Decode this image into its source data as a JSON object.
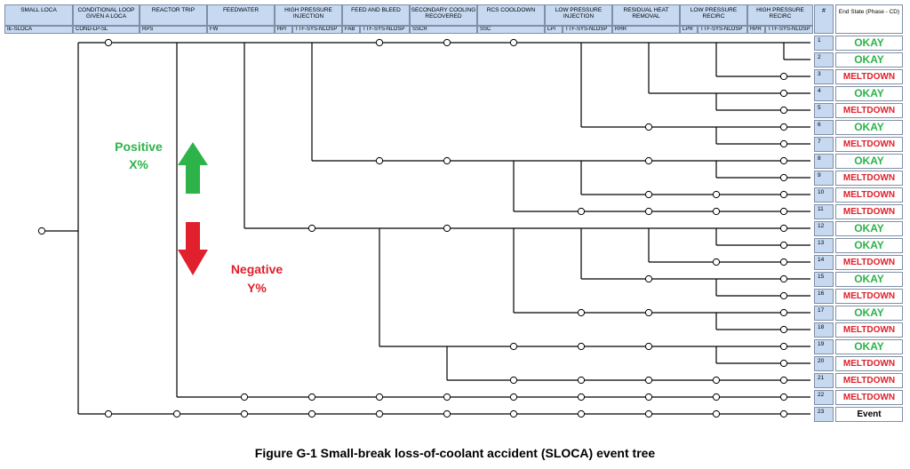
{
  "columns": [
    {
      "title": "SMALL LOCA",
      "code": "IE-SLOCA",
      "code2": ""
    },
    {
      "title": "CONDITIONAL LOOP GIVEN A LOCA",
      "code": "COND-LP-SL",
      "code2": ""
    },
    {
      "title": "REACTOR TRIP",
      "code": "RPS",
      "code2": ""
    },
    {
      "title": "FEEDWATER",
      "code": "FW",
      "code2": ""
    },
    {
      "title": "HIGH PRESSURE INJECTION",
      "code": "HPI",
      "code2": "TTF-SYS-NLOSP"
    },
    {
      "title": "FEED AND BLEED",
      "code": "FAB",
      "code2": "TTF-SYS-NLOSP"
    },
    {
      "title": "SECONDARY COOLING RECOVERED",
      "code": "SSCR",
      "code2": ""
    },
    {
      "title": "RCS COOLDOWN",
      "code": "SSC",
      "code2": ""
    },
    {
      "title": "LOW PRESSURE INJECTION",
      "code": "LPI",
      "code2": "TTF-SYS-NLOSP"
    },
    {
      "title": "RESIDUAL HEAT REMOVAL",
      "code": "RHR",
      "code2": ""
    },
    {
      "title": "LOW PRESSURE RECIRC",
      "code": "LPR",
      "code2": "TTF-SYS-NLOSP"
    },
    {
      "title": "HIGH PRESSURE RECIRC",
      "code": "HPR",
      "code2": "TTF-SYS-NLOSP"
    }
  ],
  "end_header": {
    "number": "#",
    "state": "End State (Phase - CD)"
  },
  "sequences": [
    {
      "n": "1",
      "state": "OKAY",
      "kind": "okay"
    },
    {
      "n": "2",
      "state": "OKAY",
      "kind": "okay"
    },
    {
      "n": "3",
      "state": "MELTDOWN",
      "kind": "meltdown"
    },
    {
      "n": "4",
      "state": "OKAY",
      "kind": "okay"
    },
    {
      "n": "5",
      "state": "MELTDOWN",
      "kind": "meltdown"
    },
    {
      "n": "6",
      "state": "OKAY",
      "kind": "okay"
    },
    {
      "n": "7",
      "state": "MELTDOWN",
      "kind": "meltdown"
    },
    {
      "n": "8",
      "state": "OKAY",
      "kind": "okay"
    },
    {
      "n": "9",
      "state": "MELTDOWN",
      "kind": "meltdown"
    },
    {
      "n": "10",
      "state": "MELTDOWN",
      "kind": "meltdown"
    },
    {
      "n": "11",
      "state": "MELTDOWN",
      "kind": "meltdown"
    },
    {
      "n": "12",
      "state": "OKAY",
      "kind": "okay"
    },
    {
      "n": "13",
      "state": "OKAY",
      "kind": "okay"
    },
    {
      "n": "14",
      "state": "MELTDOWN",
      "kind": "meltdown"
    },
    {
      "n": "15",
      "state": "OKAY",
      "kind": "okay"
    },
    {
      "n": "16",
      "state": "MELTDOWN",
      "kind": "meltdown"
    },
    {
      "n": "17",
      "state": "OKAY",
      "kind": "okay"
    },
    {
      "n": "18",
      "state": "MELTDOWN",
      "kind": "meltdown"
    },
    {
      "n": "19",
      "state": "OKAY",
      "kind": "okay"
    },
    {
      "n": "20",
      "state": "MELTDOWN",
      "kind": "meltdown"
    },
    {
      "n": "21",
      "state": "MELTDOWN",
      "kind": "meltdown"
    },
    {
      "n": "22",
      "state": "MELTDOWN",
      "kind": "meltdown"
    },
    {
      "n": "23",
      "state": "Event",
      "kind": "event"
    }
  ],
  "annotations": {
    "positive_label": "Positive",
    "positive_pct": "X%",
    "negative_label": "Negative",
    "negative_pct": "Y%"
  },
  "colors": {
    "okay": "#2db34a",
    "meltdown": "#e0202c",
    "header": "#c6d9f1",
    "up_arrow": "#2db34a",
    "down_arrow": "#e0202c"
  },
  "caption": "Figure G-1  Small-break loss-of-coolant accident (SLOCA) event tree"
}
